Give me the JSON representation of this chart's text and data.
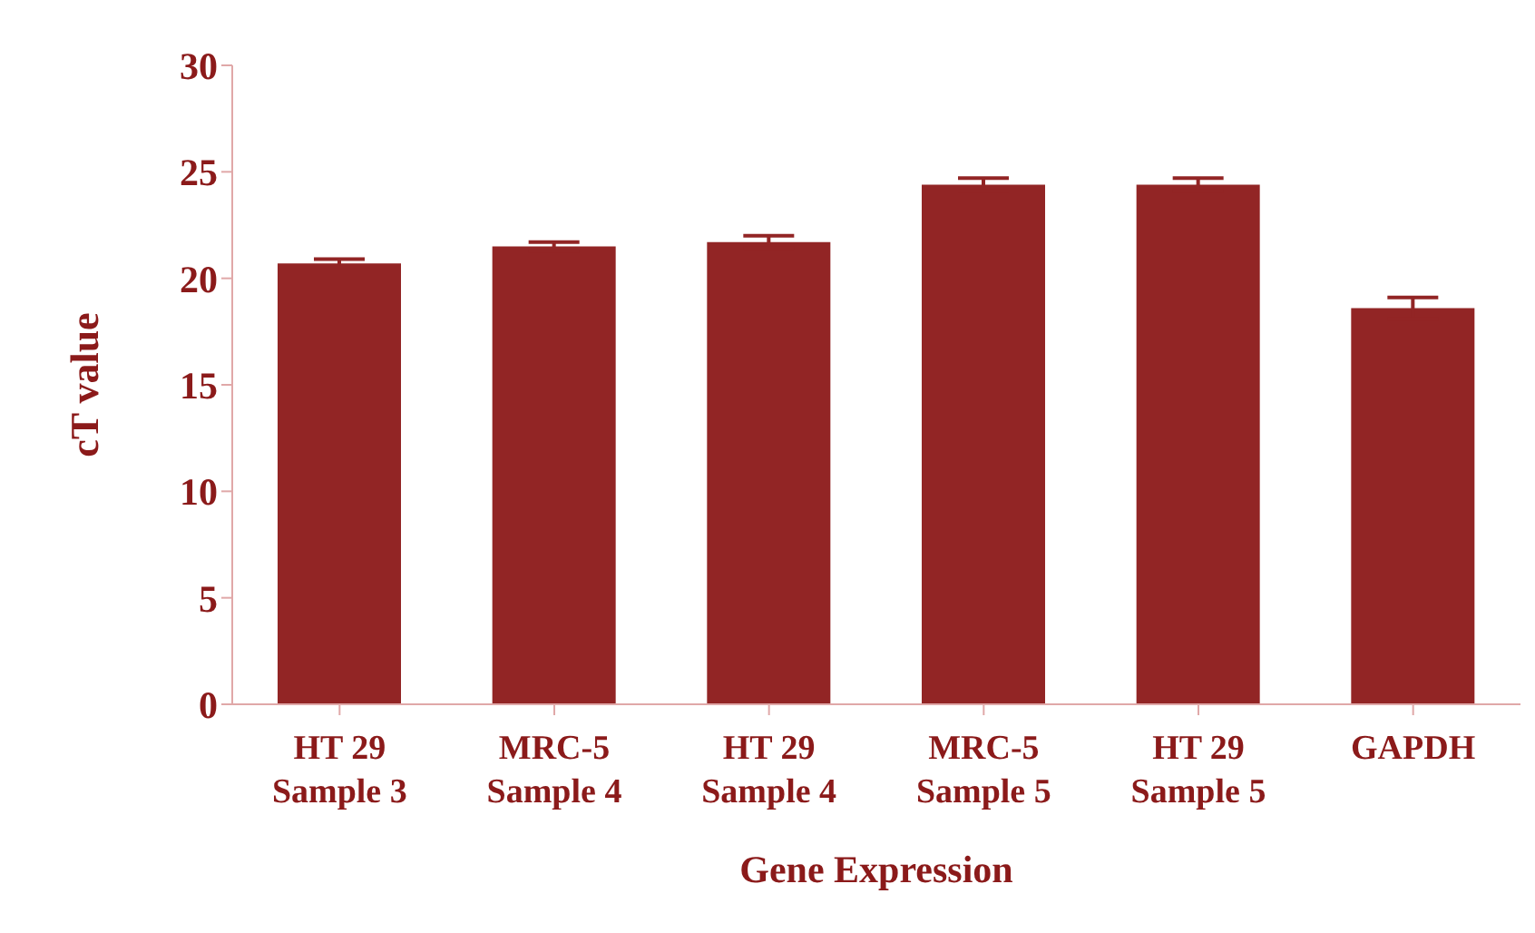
{
  "chart_data": {
    "type": "bar",
    "xlabel": "Gene Expression",
    "ylabel": "cT value",
    "categories": [
      "HT 29\nSample 3",
      "MRC-5\nSample 4",
      "HT 29\nSample 4",
      "MRC-5\nSample 5",
      "HT 29\nSample 5",
      "GAPDH"
    ],
    "values": [
      20.7,
      21.5,
      21.7,
      24.4,
      24.4,
      18.6
    ],
    "errors": [
      0.2,
      0.2,
      0.3,
      0.3,
      0.3,
      0.5
    ],
    "color": "#922525",
    "ylim": [
      0,
      30
    ],
    "yticks": [
      0,
      5,
      10,
      15,
      20,
      25,
      30
    ],
    "grid": false,
    "legend": false
  }
}
